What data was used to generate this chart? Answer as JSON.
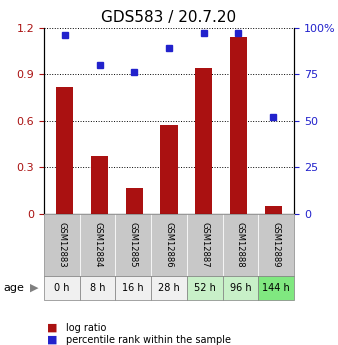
{
  "title": "GDS583 / 20.7.20",
  "samples": [
    "GSM12883",
    "GSM12884",
    "GSM12885",
    "GSM12886",
    "GSM12887",
    "GSM12888",
    "GSM12889"
  ],
  "ages": [
    "0 h",
    "8 h",
    "16 h",
    "28 h",
    "52 h",
    "96 h",
    "144 h"
  ],
  "log_ratio": [
    0.82,
    0.37,
    0.17,
    0.57,
    0.94,
    1.14,
    0.05
  ],
  "percentile_rank": [
    96,
    80,
    76,
    89,
    97,
    97,
    52
  ],
  "bar_color": "#aa1111",
  "dot_color": "#2222cc",
  "left_yticks": [
    0,
    0.3,
    0.6,
    0.9,
    1.2
  ],
  "right_yticks": [
    0,
    25,
    50,
    75,
    100
  ],
  "ylim_left": [
    0,
    1.2
  ],
  "ylim_right": [
    0,
    100
  ],
  "age_colors": [
    "#f0f0f0",
    "#f0f0f0",
    "#f0f0f0",
    "#f0f0f0",
    "#c8f0c8",
    "#c8f0c8",
    "#80e880"
  ],
  "legend_labels": [
    "log ratio",
    "percentile rank within the sample"
  ],
  "header_bg": "#c8c8c8",
  "age_label": "age"
}
